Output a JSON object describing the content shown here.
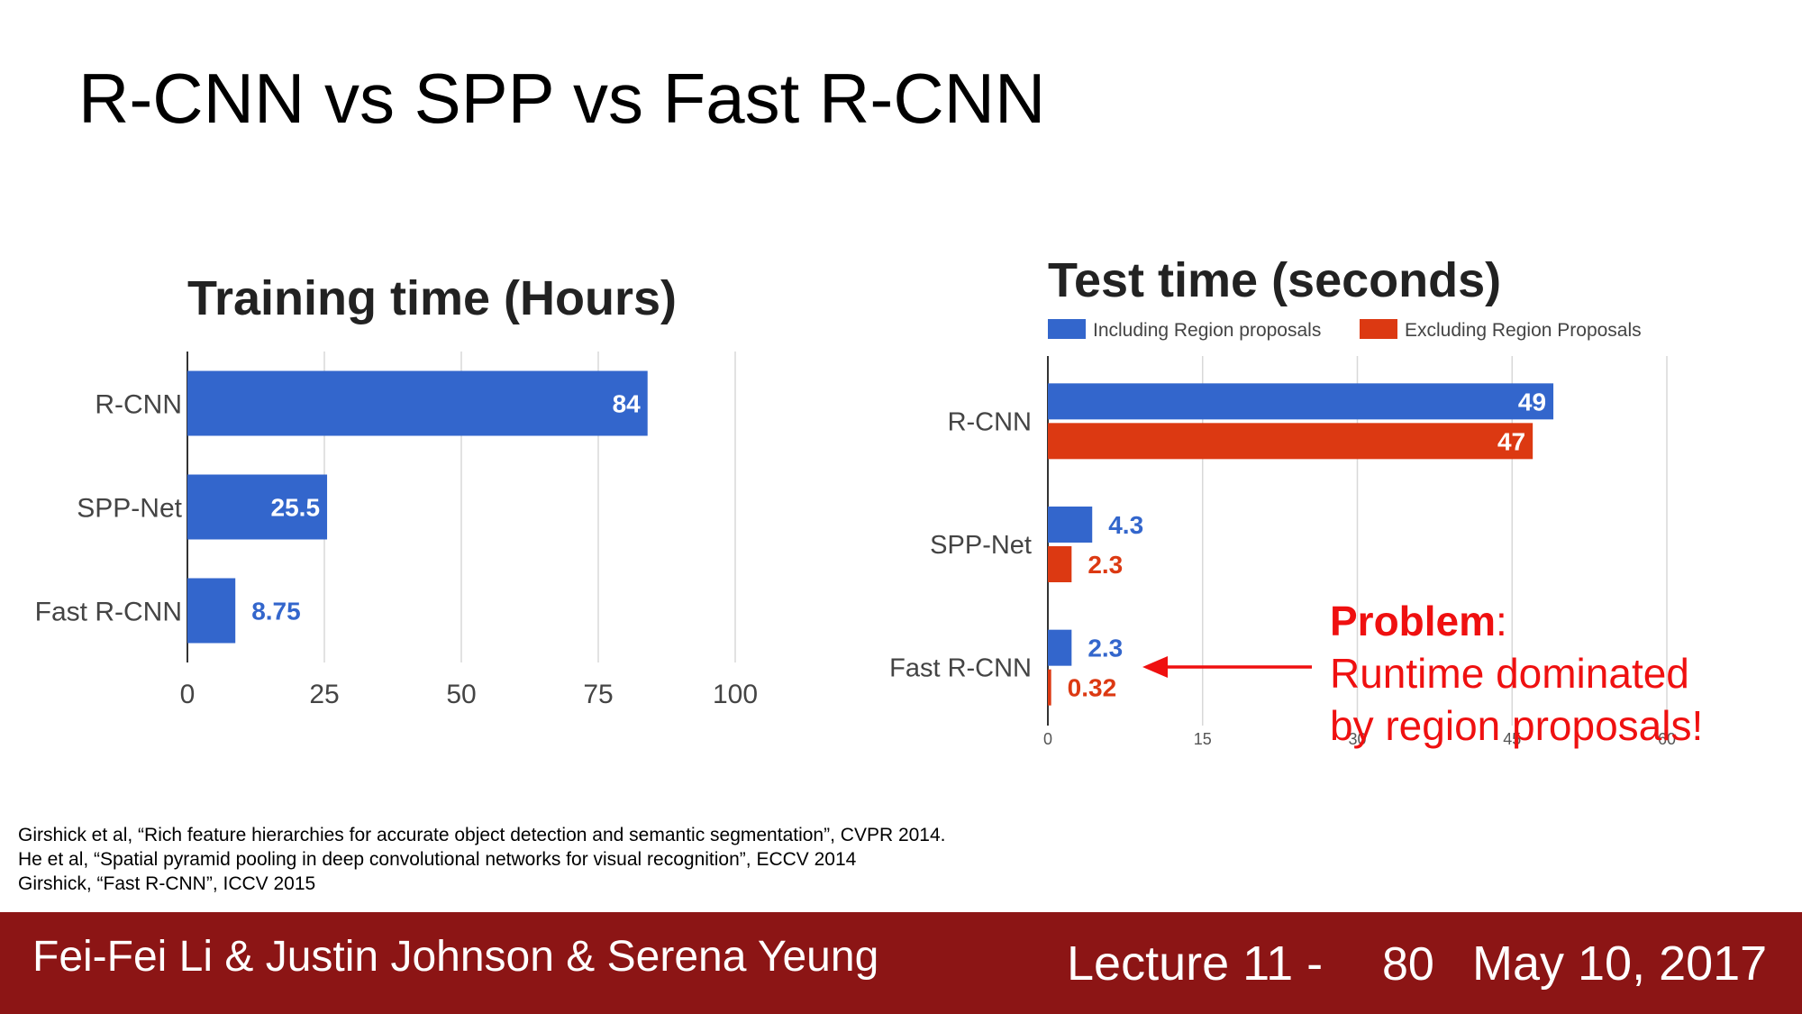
{
  "slide": {
    "title": "R-CNN vs SPP vs Fast R-CNN"
  },
  "chart_data": [
    {
      "type": "bar",
      "orientation": "horizontal",
      "title": "Training time (Hours)",
      "categories": [
        "R-CNN",
        "SPP-Net",
        "Fast R-CNN"
      ],
      "values": [
        84,
        25.5,
        8.75
      ],
      "value_labels": [
        "84",
        "25.5",
        "8.75"
      ],
      "xlim": [
        0,
        100
      ],
      "xticks": [
        0,
        25,
        50,
        75,
        100
      ],
      "grid": true,
      "color": "#3366cc"
    },
    {
      "type": "bar",
      "orientation": "horizontal",
      "title": "Test time (seconds)",
      "categories": [
        "R-CNN",
        "SPP-Net",
        "Fast R-CNN"
      ],
      "series": [
        {
          "name": "Including Region proposals",
          "values": [
            49,
            4.3,
            2.3
          ],
          "labels": [
            "49",
            "4.3",
            "2.3"
          ],
          "color": "#3366cc"
        },
        {
          "name": "Excluding Region Proposals",
          "values": [
            47,
            2.3,
            0.32
          ],
          "labels": [
            "47",
            "2.3",
            "0.32"
          ],
          "color": "#dc3912"
        }
      ],
      "xlim": [
        0,
        60
      ],
      "xticks": [
        0,
        15,
        30,
        45,
        60
      ],
      "legend": "top",
      "grid": true
    }
  ],
  "annotation": {
    "problem_bold": "Problem",
    "problem_colon": ":",
    "line2": "Runtime dominated",
    "line3": "by region proposals!",
    "color": "#ef1010"
  },
  "references": [
    "Girshick et al, “Rich feature hierarchies for accurate object detection and semantic segmentation”, CVPR 2014.",
    "He et al, “Spatial pyramid pooling in deep convolutional networks for visual recognition”, ECCV 2014",
    "Girshick, “Fast R-CNN”, ICCV 2015"
  ],
  "footer": {
    "authors": "Fei-Fei Li & Justin Johnson & Serena Yeung",
    "lecture": "Lecture 11 -",
    "page": "80",
    "date": "May 10, 2017",
    "color": "#8c1515"
  }
}
